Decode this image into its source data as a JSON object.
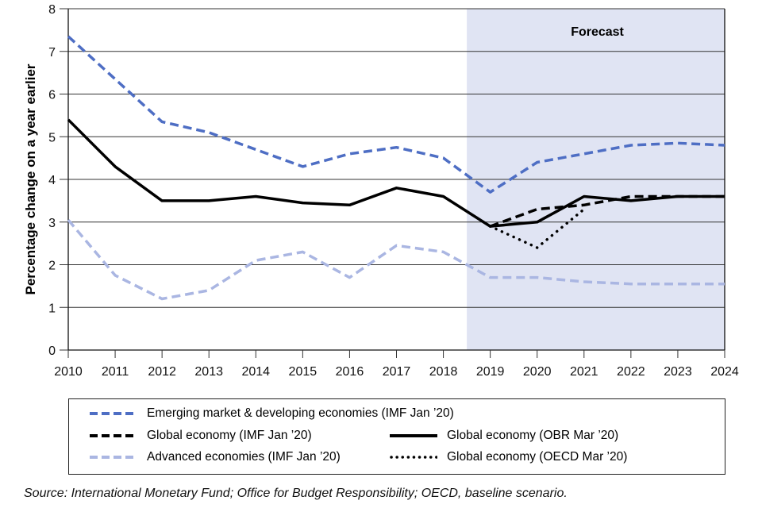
{
  "chart_data": {
    "type": "line",
    "title": "",
    "xlabel": "",
    "ylabel": "Percentage change on a year earlier",
    "x": [
      2010,
      2011,
      2012,
      2013,
      2014,
      2015,
      2016,
      2017,
      2018,
      2019,
      2020,
      2021,
      2022,
      2023,
      2024
    ],
    "xlim": [
      2010,
      2024
    ],
    "ylim": [
      0,
      8
    ],
    "yticks": [
      0,
      1,
      2,
      3,
      4,
      5,
      6,
      7,
      8
    ],
    "xticks": [
      2010,
      2011,
      2012,
      2013,
      2014,
      2015,
      2016,
      2017,
      2018,
      2019,
      2020,
      2021,
      2022,
      2023,
      2024
    ],
    "grid": "horizontal",
    "forecast_region": {
      "label": "Forecast",
      "from": 2018.5,
      "to": 2024,
      "color": "#e0e4f3"
    },
    "series": [
      {
        "name": "Emerging market & developing economies (IMF Jan ’20)",
        "color": "#4e6ec4",
        "style": "dashed",
        "x": [
          2010,
          2011,
          2012,
          2013,
          2014,
          2015,
          2016,
          2017,
          2018,
          2019,
          2020,
          2021,
          2022,
          2023,
          2024
        ],
        "values": [
          7.35,
          6.35,
          5.35,
          5.1,
          4.7,
          4.3,
          4.6,
          4.75,
          4.5,
          3.7,
          4.4,
          4.6,
          4.8,
          4.85,
          4.8
        ]
      },
      {
        "name": "Global economy (IMF Jan ’20)",
        "color": "#000000",
        "style": "dashed",
        "x": [
          2019,
          2020,
          2021,
          2022,
          2023,
          2024
        ],
        "values": [
          2.9,
          3.3,
          3.4,
          3.6,
          3.6,
          3.6
        ]
      },
      {
        "name": "Advanced economies (IMF Jan ’20)",
        "color": "#aab6e2",
        "style": "dashed",
        "x": [
          2010,
          2011,
          2012,
          2013,
          2014,
          2015,
          2016,
          2017,
          2018,
          2019,
          2020,
          2021,
          2022,
          2023,
          2024
        ],
        "values": [
          3.05,
          1.75,
          1.2,
          1.4,
          2.1,
          2.3,
          1.7,
          2.45,
          2.3,
          1.7,
          1.7,
          1.6,
          1.55,
          1.55,
          1.55
        ]
      },
      {
        "name": "Global economy (OBR Mar ’20)",
        "color": "#000000",
        "style": "solid",
        "x": [
          2010,
          2011,
          2012,
          2013,
          2014,
          2015,
          2016,
          2017,
          2018,
          2019,
          2020,
          2021,
          2022,
          2023,
          2024
        ],
        "values": [
          5.4,
          4.3,
          3.5,
          3.5,
          3.6,
          3.45,
          3.4,
          3.8,
          3.6,
          2.9,
          3.0,
          3.6,
          3.5,
          3.6,
          3.6
        ]
      },
      {
        "name": "Global economy (OECD Mar ’20)",
        "color": "#000000",
        "style": "dotted",
        "x": [
          2019,
          2020,
          2021
        ],
        "values": [
          2.9,
          2.4,
          3.3
        ]
      }
    ],
    "legend": {
      "placement": "bottom",
      "entries": [
        "Emerging market & developing economies (IMF Jan ’20)",
        "Global economy (IMF Jan ’20)",
        "Global economy (OBR Mar ’20)",
        "Advanced economies (IMF Jan ’20)",
        "Global economy (OECD Mar ’20)"
      ]
    }
  },
  "source_note": "Source: International Monetary Fund; Office for Budget Responsibility; OECD, baseline scenario."
}
